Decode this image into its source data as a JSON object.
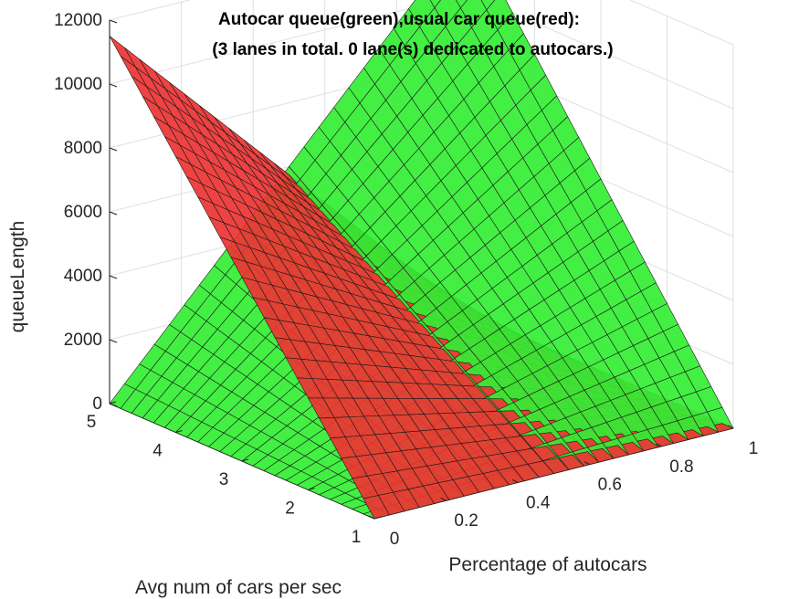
{
  "chart_data": {
    "type": "surface",
    "title_line1": "Autocar queue(green),usual car queue(red):",
    "title_line2": "(3 lanes in total. 0 lane(s) dedicated to autocars.)",
    "xlabel": "Percentage of autocars",
    "ylabel": "Avg num of cars per sec",
    "zlabel": "queueLength",
    "xlim": [
      0,
      1
    ],
    "ylim": [
      1,
      5
    ],
    "zlim": [
      0,
      12000
    ],
    "x_ticks": [
      0,
      0.2,
      0.4,
      0.6,
      0.8,
      1
    ],
    "x_tick_labels": [
      "0",
      "0.2",
      "0.4",
      "0.6",
      "0.8",
      "1"
    ],
    "y_ticks": [
      1,
      2,
      3,
      4,
      5
    ],
    "y_tick_labels": [
      "1",
      "2",
      "3",
      "4",
      "5"
    ],
    "z_ticks": [
      0,
      2000,
      4000,
      6000,
      8000,
      10000,
      12000
    ],
    "z_tick_labels": [
      "0",
      "2000",
      "4000",
      "6000",
      "8000",
      "10000",
      "12000"
    ],
    "grid": true,
    "series": [
      {
        "name": "Autocar queue",
        "color": "#33ee33",
        "corner_values": {
          "x0_y1": 0,
          "x0_y5": 0,
          "x1_y1": 0,
          "x1_y5": 12000
        }
      },
      {
        "name": "Usual car queue",
        "color": "#ee3333",
        "corner_values": {
          "x0_y1": 0,
          "x0_y5": 11500,
          "x1_y1": 0,
          "x1_y5": 0
        }
      }
    ]
  }
}
